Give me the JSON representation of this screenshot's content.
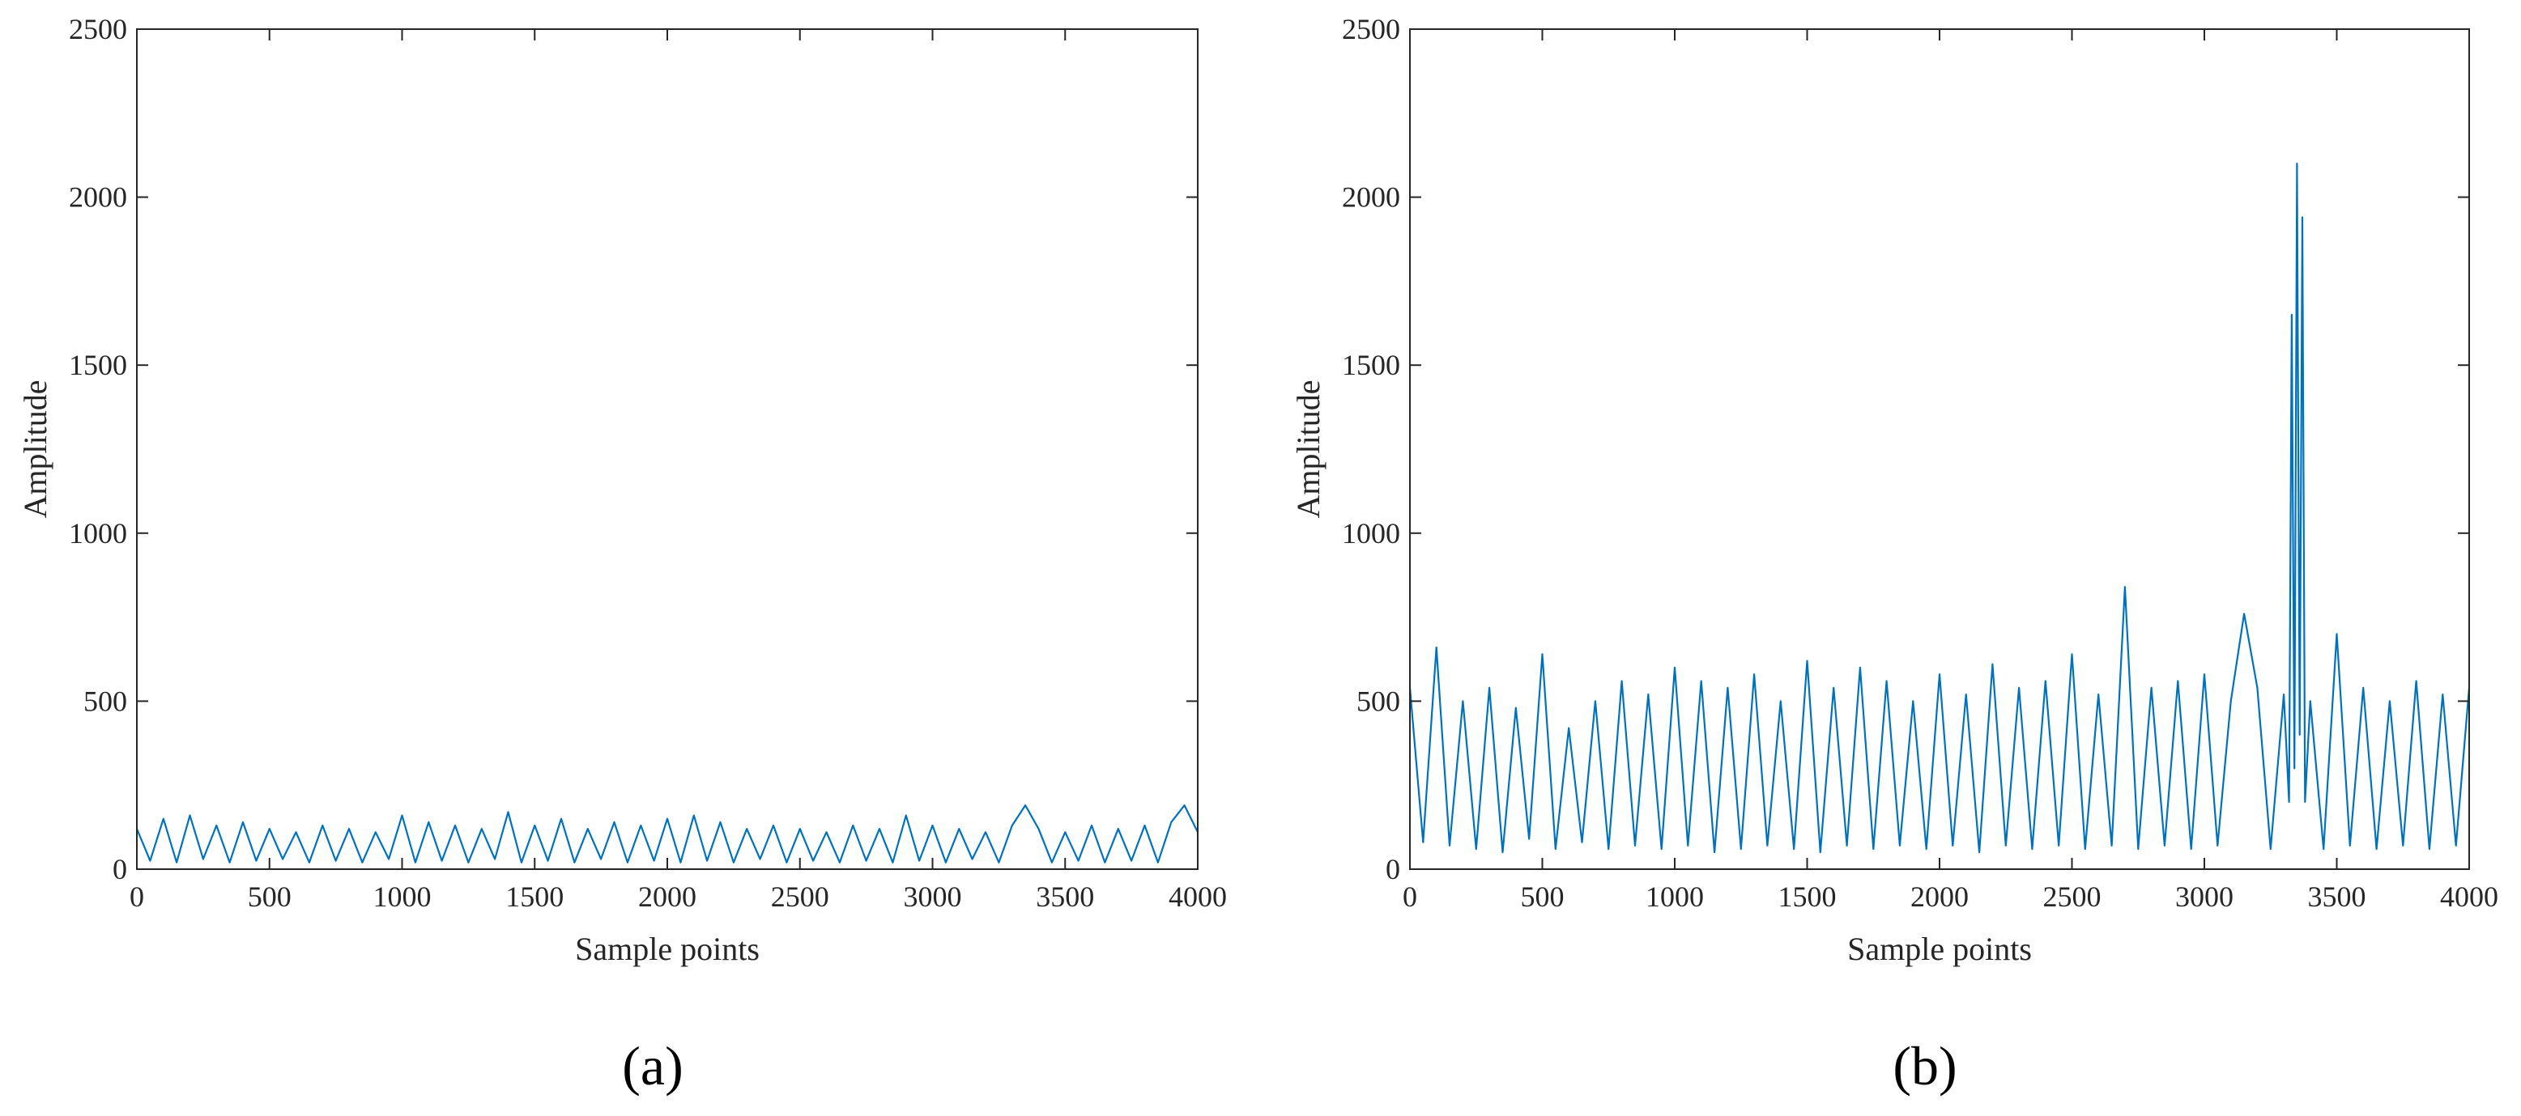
{
  "chart_data": [
    {
      "type": "line",
      "caption": "(a)",
      "xlabel": "Sample points",
      "ylabel": "Amplitude",
      "color": "#0072bd",
      "xlim": [
        0,
        4000
      ],
      "ylim": [
        0,
        2500
      ],
      "xticks": [
        0,
        500,
        1000,
        1500,
        2000,
        2500,
        3000,
        3500,
        4000
      ],
      "yticks": [
        0,
        500,
        1000,
        1500,
        2000,
        2500
      ],
      "x": [
        0,
        50,
        100,
        150,
        200,
        250,
        300,
        350,
        400,
        450,
        500,
        550,
        600,
        650,
        700,
        750,
        800,
        850,
        900,
        950,
        1000,
        1050,
        1100,
        1150,
        1200,
        1250,
        1300,
        1350,
        1400,
        1450,
        1500,
        1550,
        1600,
        1650,
        1700,
        1750,
        1800,
        1850,
        1900,
        1950,
        2000,
        2050,
        2100,
        2150,
        2200,
        2250,
        2300,
        2350,
        2400,
        2450,
        2500,
        2550,
        2600,
        2650,
        2700,
        2750,
        2800,
        2850,
        2900,
        2950,
        3000,
        3050,
        3100,
        3150,
        3200,
        3250,
        3300,
        3350,
        3400,
        3450,
        3500,
        3550,
        3600,
        3650,
        3700,
        3750,
        3800,
        3850,
        3900,
        3950,
        4000
      ],
      "values": [
        120,
        25,
        150,
        20,
        160,
        30,
        130,
        20,
        140,
        25,
        120,
        30,
        110,
        20,
        130,
        25,
        120,
        20,
        110,
        30,
        160,
        20,
        140,
        25,
        130,
        20,
        120,
        30,
        170,
        20,
        130,
        25,
        150,
        20,
        120,
        30,
        140,
        20,
        130,
        25,
        150,
        20,
        160,
        25,
        140,
        20,
        120,
        30,
        130,
        20,
        120,
        25,
        110,
        20,
        130,
        25,
        120,
        20,
        160,
        25,
        130,
        20,
        120,
        30,
        110,
        20,
        130,
        190,
        120,
        20,
        110,
        25,
        130,
        20,
        120,
        25,
        130,
        20,
        140,
        190,
        110
      ]
    },
    {
      "type": "line",
      "caption": "(b)",
      "xlabel": "Sample points",
      "ylabel": "Amplitude",
      "color": "#0072bd",
      "xlim": [
        0,
        4000
      ],
      "ylim": [
        0,
        2500
      ],
      "xticks": [
        0,
        500,
        1000,
        1500,
        2000,
        2500,
        3000,
        3500,
        4000
      ],
      "yticks": [
        0,
        500,
        1000,
        1500,
        2000,
        2500
      ],
      "x": [
        0,
        50,
        100,
        150,
        200,
        250,
        300,
        350,
        400,
        450,
        500,
        550,
        600,
        650,
        700,
        750,
        800,
        850,
        900,
        950,
        1000,
        1050,
        1100,
        1150,
        1200,
        1250,
        1300,
        1350,
        1400,
        1450,
        1500,
        1550,
        1600,
        1650,
        1700,
        1750,
        1800,
        1850,
        1900,
        1950,
        2000,
        2050,
        2100,
        2150,
        2200,
        2250,
        2300,
        2350,
        2400,
        2450,
        2500,
        2550,
        2600,
        2650,
        2700,
        2750,
        2800,
        2850,
        2900,
        2950,
        3000,
        3050,
        3100,
        3150,
        3200,
        3250,
        3300,
        3320,
        3330,
        3340,
        3350,
        3360,
        3370,
        3380,
        3400,
        3450,
        3500,
        3550,
        3600,
        3650,
        3700,
        3750,
        3800,
        3850,
        3900,
        3950,
        4000
      ],
      "values": [
        540,
        80,
        660,
        70,
        500,
        60,
        540,
        50,
        480,
        90,
        640,
        60,
        420,
        80,
        500,
        60,
        560,
        70,
        520,
        60,
        600,
        70,
        560,
        50,
        540,
        60,
        580,
        70,
        500,
        60,
        620,
        50,
        540,
        70,
        600,
        60,
        560,
        70,
        500,
        60,
        580,
        70,
        520,
        50,
        610,
        70,
        540,
        60,
        560,
        70,
        640,
        60,
        520,
        70,
        840,
        60,
        540,
        70,
        560,
        60,
        580,
        70,
        500,
        760,
        540,
        60,
        520,
        200,
        1650,
        300,
        2100,
        400,
        1940,
        200,
        500,
        60,
        700,
        70,
        540,
        60,
        500,
        70,
        560,
        60,
        520,
        70,
        540
      ]
    }
  ]
}
